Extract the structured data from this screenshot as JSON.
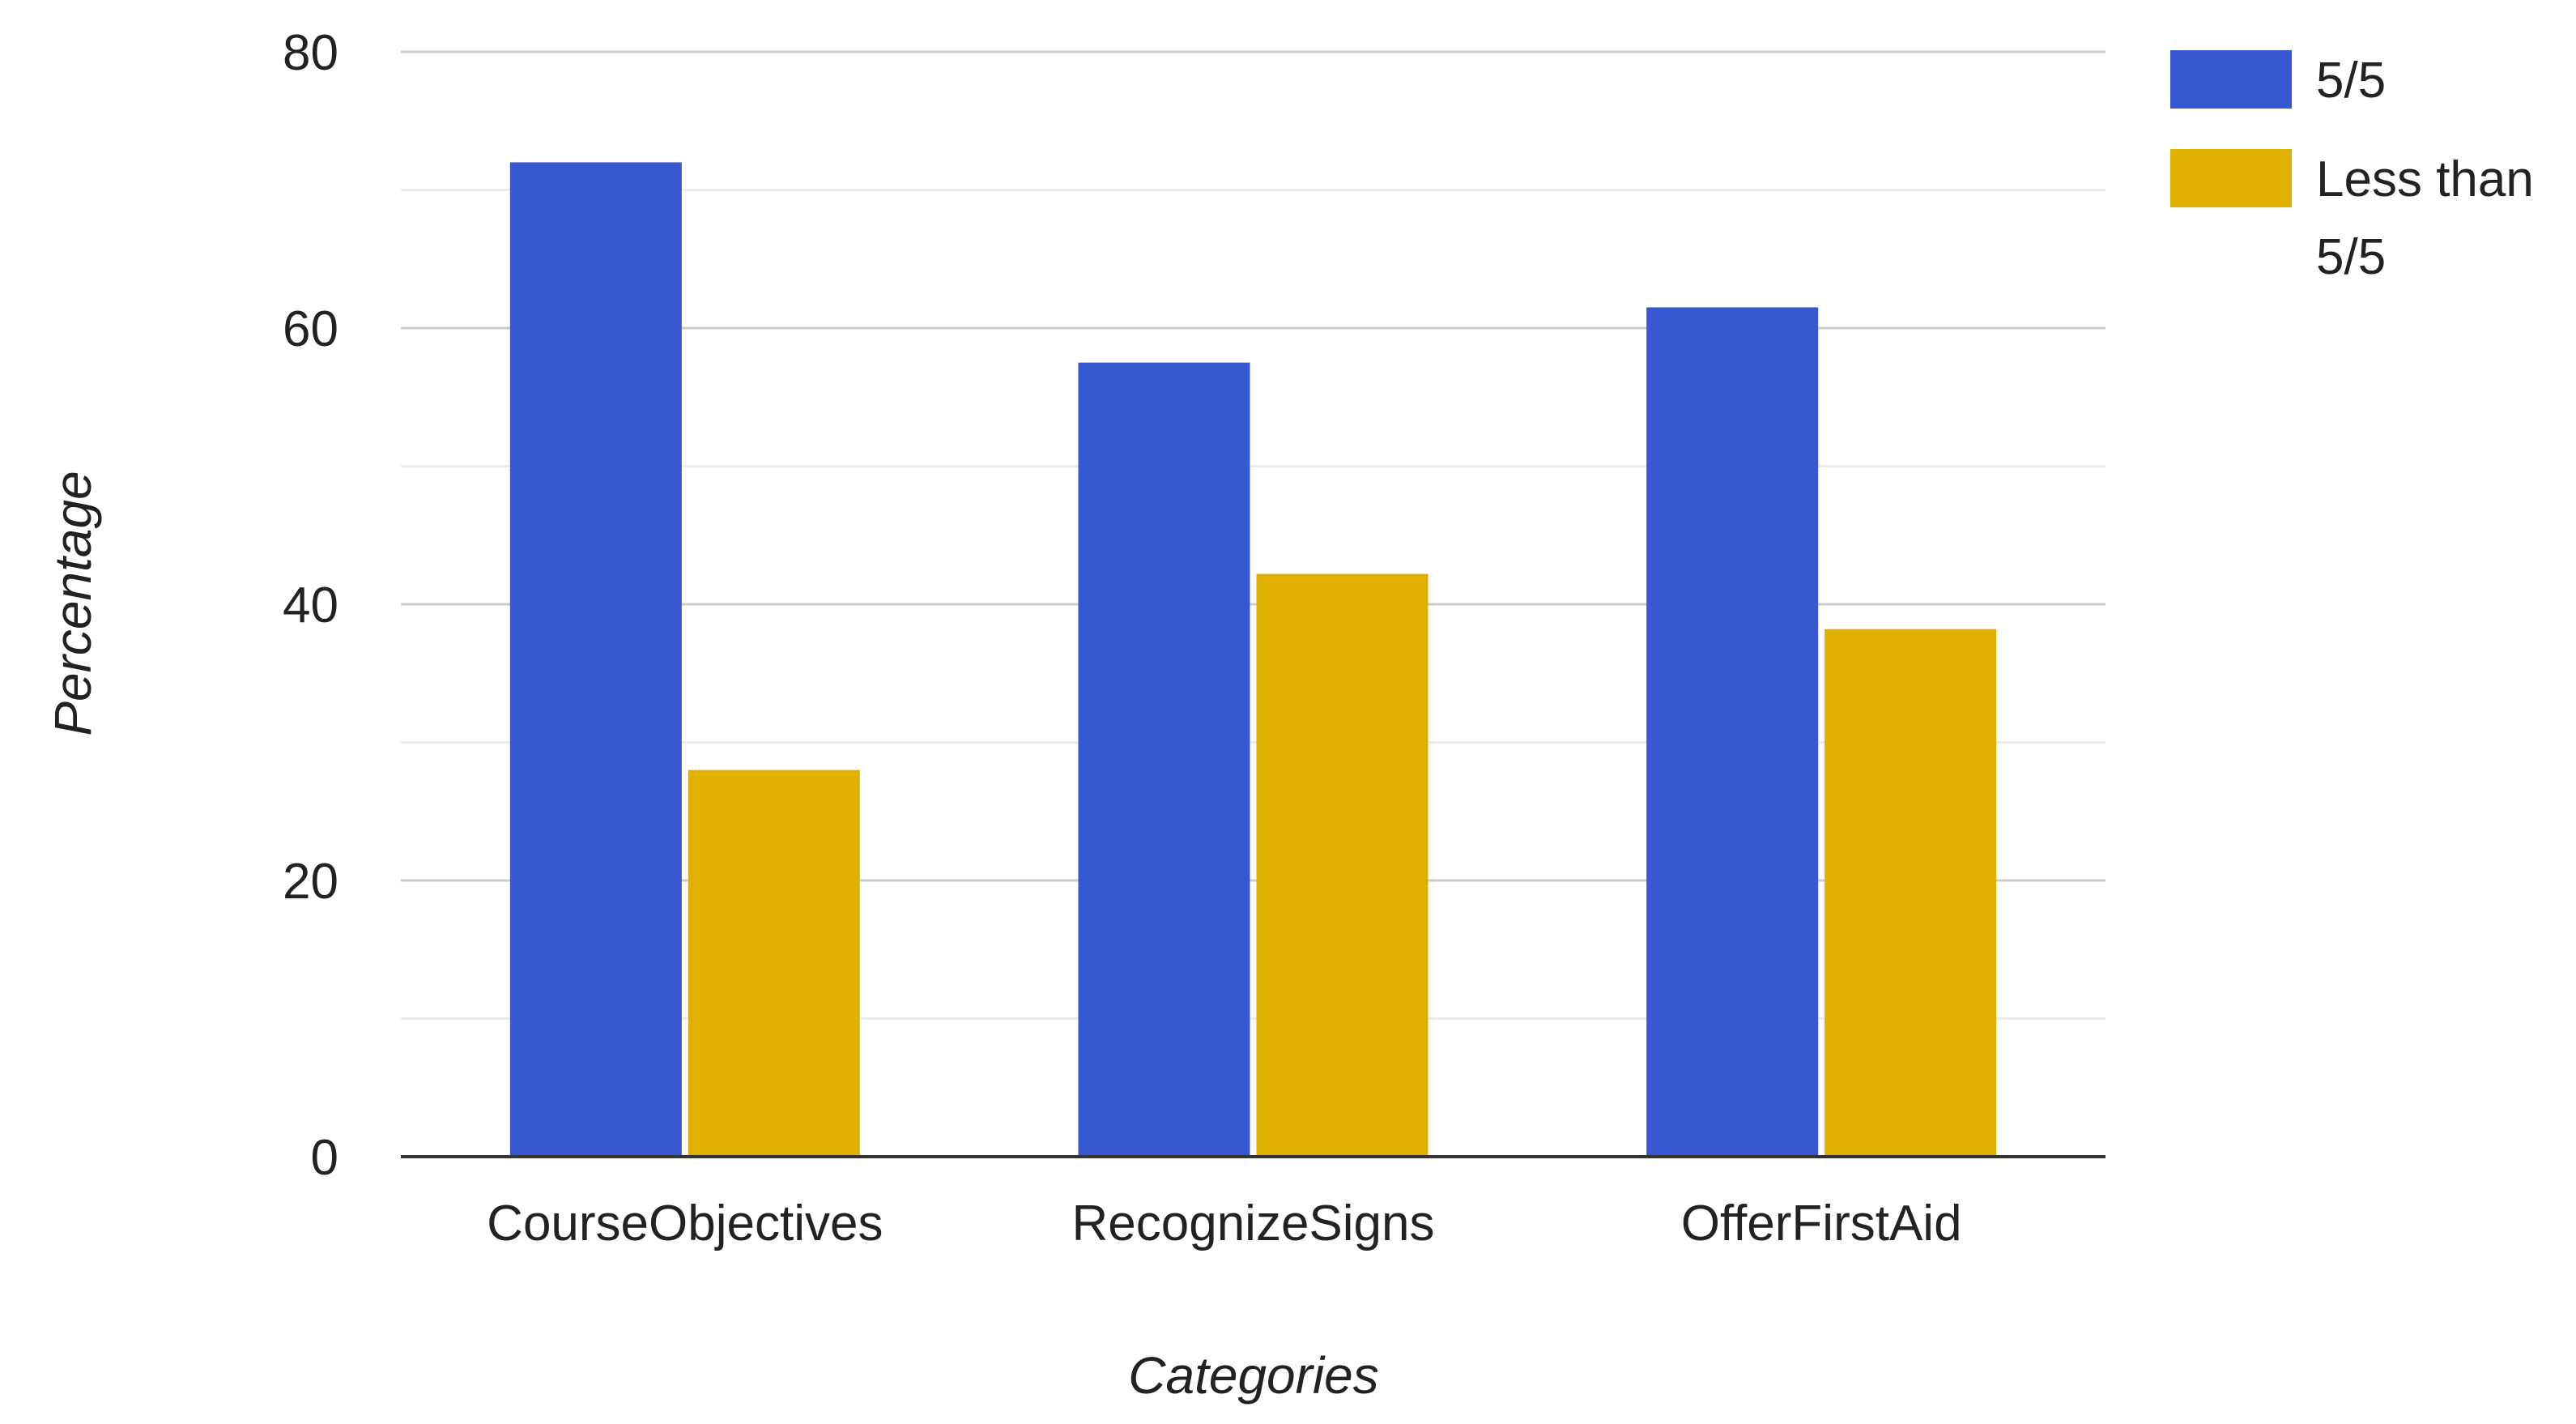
{
  "chart_data": {
    "type": "bar",
    "xlabel": "Categories",
    "ylabel": "Percentage",
    "categories": [
      "CourseObjectives",
      "RecognizeSigns",
      "OfferFirstAid"
    ],
    "series": [
      {
        "name": "5/5",
        "color": "#3758d1",
        "values": [
          72,
          57.5,
          61.5
        ]
      },
      {
        "name": "Less than 5/5",
        "color": "#e0b000",
        "values": [
          28,
          42.2,
          38.2
        ]
      }
    ],
    "ylim": [
      0,
      80
    ],
    "yticks": [
      "0",
      "20",
      "40",
      "60",
      "80"
    ],
    "legend_placement": "top-right",
    "legend_lines": [
      [
        "5/5"
      ],
      [
        "Less than",
        "5/5"
      ]
    ],
    "grid": true,
    "grid_color": "#cccccc",
    "minor_grid_color": "#ececec",
    "axis_color": "#333333"
  }
}
